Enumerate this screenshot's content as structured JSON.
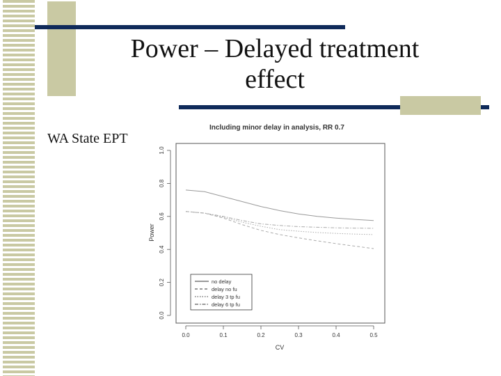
{
  "slide": {
    "title_line1": "Power – Delayed treatment",
    "title_line2": "effect",
    "side_label": "WA State EPT",
    "colors": {
      "navy": "#0f2a5a",
      "olive": "#c9c9a3"
    }
  },
  "chart_data": {
    "type": "line",
    "title": "Including minor delay in analysis, RR 0.7",
    "xlabel": "CV",
    "ylabel": "Power",
    "xlim": [
      0.0,
      0.5
    ],
    "ylim": [
      0.0,
      1.0
    ],
    "xticks": [
      "0.0",
      "0.1",
      "0.2",
      "0.3",
      "0.4",
      "0.5"
    ],
    "yticks": [
      "0.0",
      "0.2",
      "0.4",
      "0.6",
      "0.8",
      "1.0"
    ],
    "legend_position": "bottom-left",
    "grid": false,
    "x": [
      0.0,
      0.05,
      0.1,
      0.15,
      0.2,
      0.25,
      0.3,
      0.35,
      0.4,
      0.45,
      0.5
    ],
    "series": [
      {
        "name": "no delay",
        "dash": "",
        "color": "#999999",
        "values": [
          0.76,
          0.75,
          0.72,
          0.69,
          0.66,
          0.635,
          0.615,
          0.6,
          0.59,
          0.582,
          0.575
        ]
      },
      {
        "name": "delay no fu",
        "dash": "4,3",
        "color": "#aaaaaa",
        "values": [
          0.63,
          0.62,
          0.59,
          0.55,
          0.515,
          0.49,
          0.47,
          0.452,
          0.435,
          0.42,
          0.405
        ]
      },
      {
        "name": "delay 3 tp fu",
        "dash": "1.5,2",
        "color": "#aaaaaa",
        "values": [
          0.63,
          0.62,
          0.595,
          0.565,
          0.54,
          0.52,
          0.51,
          0.502,
          0.497,
          0.493,
          0.49
        ]
      },
      {
        "name": "delay 6 tp fu",
        "dash": "5,2,1.5,2",
        "color": "#aaaaaa",
        "values": [
          0.63,
          0.62,
          0.6,
          0.575,
          0.555,
          0.545,
          0.538,
          0.534,
          0.531,
          0.529,
          0.528
        ]
      }
    ]
  }
}
